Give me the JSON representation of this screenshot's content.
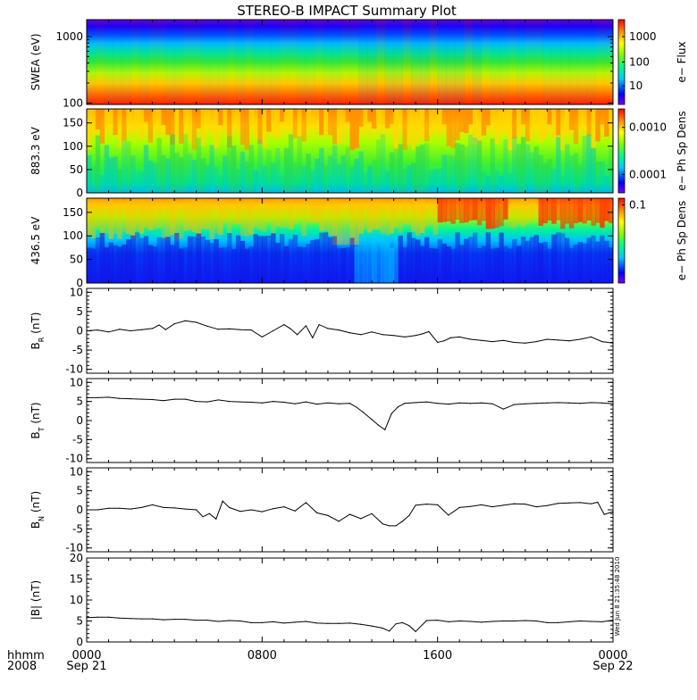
{
  "title": "STEREO-B IMPACT Summary Plot",
  "timestamp_stamp": "Wed Jun  8 21:35:48 2010",
  "x_axis": {
    "row1_label": "hhmm",
    "row2_label": "2008",
    "ticks": [
      {
        "time": "0000",
        "date": "Sep 21",
        "hour": 0
      },
      {
        "time": "0800",
        "date": "",
        "hour": 8
      },
      {
        "time": "1600",
        "date": "",
        "hour": 16
      },
      {
        "time": "0000",
        "date": "Sep 22",
        "hour": 24
      }
    ],
    "xlim_hours": [
      0,
      24
    ]
  },
  "chart_data": [
    {
      "type": "heatmap",
      "id": "swea",
      "ylabel": "SWEA (eV)",
      "yscale": "log",
      "ylim": [
        95,
        1800
      ],
      "yticks": [
        {
          "v": 100,
          "label": "100"
        },
        {
          "v": 1000,
          "label": "1000"
        }
      ],
      "colorbar_label": "e− Flux",
      "colorbar_scale": "log",
      "colorbar_ticks": [
        "10",
        "100",
        "1000"
      ],
      "notes": "Flux decreases with energy: red near 100 eV, green ~400 eV, blue/purple above ~1000 eV; slightly higher flux after ~12:30"
    },
    {
      "type": "heatmap",
      "id": "pad883",
      "ylabel": "883.3 eV",
      "ylim": [
        0,
        180
      ],
      "yticks": [
        {
          "v": 0,
          "label": "0"
        },
        {
          "v": 50,
          "label": "50"
        },
        {
          "v": 100,
          "label": "100"
        },
        {
          "v": 150,
          "label": "150"
        }
      ],
      "colorbar_label": "e− Ph Sp Dens",
      "colorbar_scale": "log",
      "colorbar_ticks": [
        "0.0001",
        "0.0010"
      ]
    },
    {
      "type": "heatmap",
      "id": "pad436",
      "ylabel": "436.5 eV",
      "ylim": [
        0,
        180
      ],
      "yticks": [
        {
          "v": 0,
          "label": "0"
        },
        {
          "v": 50,
          "label": "50"
        },
        {
          "v": 100,
          "label": "100"
        },
        {
          "v": 150,
          "label": "150"
        }
      ],
      "colorbar_label": "e− Ph Sp Dens",
      "colorbar_scale": "log",
      "colorbar_ticks": [
        "0.1"
      ]
    },
    {
      "type": "line",
      "id": "br",
      "ylabel_main": "B",
      "ylabel_sub": "R",
      "ylabel_unit": " (nT)",
      "ylim": [
        -11,
        11
      ],
      "yticks": [
        -10,
        -5,
        0,
        5,
        10
      ],
      "x_hours": [
        0,
        0.5,
        1,
        1.5,
        2,
        2.5,
        3,
        3.3,
        3.6,
        4,
        4.5,
        5,
        5.5,
        6,
        6.5,
        7,
        7.5,
        8,
        8.5,
        9,
        9.3,
        9.6,
        10,
        10.3,
        10.6,
        11,
        11.5,
        12,
        12.5,
        13,
        13.5,
        14,
        14.5,
        15,
        15.3,
        15.6,
        16,
        16.3,
        16.6,
        17,
        17.5,
        18,
        18.5,
        19,
        19.5,
        20,
        20.5,
        21,
        21.5,
        22,
        22.5,
        23,
        23.5,
        24
      ],
      "values": [
        0,
        0.2,
        -0.3,
        0.4,
        0,
        0.3,
        0.6,
        1.5,
        0.3,
        1.8,
        2.6,
        2.2,
        1.2,
        0.4,
        0.5,
        0.3,
        0.2,
        -1.6,
        0,
        1.6,
        0.5,
        -1,
        1.3,
        -1.8,
        1.6,
        0.6,
        0.2,
        -0.5,
        -1,
        -0.3,
        -1,
        -1.2,
        -1.6,
        -1.2,
        -0.8,
        -0.2,
        -3,
        -2.6,
        -1.8,
        -1.6,
        -2.2,
        -2.5,
        -2.8,
        -2.5,
        -3,
        -3.2,
        -2.8,
        -2.2,
        -2.4,
        -2.6,
        -2.2,
        -1.6,
        -2.8,
        -3.2
      ]
    },
    {
      "type": "line",
      "id": "bt",
      "ylabel_main": "B",
      "ylabel_sub": "T",
      "ylabel_unit": " (nT)",
      "ylim": [
        -11,
        11
      ],
      "yticks": [
        -10,
        -5,
        0,
        5,
        10
      ],
      "x_hours": [
        0,
        0.5,
        1,
        1.5,
        2,
        2.5,
        3,
        3.5,
        4,
        4.5,
        5,
        5.5,
        6,
        6.5,
        7,
        7.5,
        8,
        8.5,
        9,
        9.5,
        10,
        10.5,
        11,
        11.5,
        12,
        12.3,
        12.6,
        13,
        13.3,
        13.6,
        13.9,
        14.2,
        14.5,
        15,
        15.5,
        16,
        16.5,
        17,
        17.5,
        18,
        18.5,
        19,
        19.5,
        20,
        20.5,
        21,
        21.5,
        22,
        22.5,
        23,
        23.5,
        24
      ],
      "values": [
        6,
        6,
        6.1,
        5.8,
        5.7,
        5.6,
        5.5,
        5.2,
        5.6,
        5.6,
        5,
        4.9,
        5.4,
        5,
        4.9,
        4.8,
        4.6,
        5,
        4.8,
        4.4,
        4.9,
        4.3,
        4.6,
        4.4,
        4.5,
        3.5,
        2.2,
        0.3,
        -1.2,
        -2.4,
        1.8,
        3.6,
        4.5,
        4.7,
        4.9,
        4.5,
        4.3,
        4.6,
        4.5,
        4.6,
        4.4,
        3,
        4.2,
        4.4,
        4.5,
        4.6,
        4.7,
        4.6,
        4.5,
        4.7,
        4.6,
        4.4
      ]
    },
    {
      "type": "line",
      "id": "bn",
      "ylabel_main": "B",
      "ylabel_sub": "N",
      "ylabel_unit": " (nT)",
      "ylim": [
        -11,
        11
      ],
      "yticks": [
        -10,
        -5,
        0,
        5,
        10
      ],
      "x_hours": [
        0,
        0.5,
        1,
        1.5,
        2,
        2.5,
        3,
        3.5,
        4,
        4.5,
        5,
        5.3,
        5.6,
        5.9,
        6.2,
        6.5,
        7,
        7.5,
        8,
        8.5,
        9,
        9.5,
        10,
        10.5,
        11,
        11.5,
        12,
        12.5,
        13,
        13.5,
        13.8,
        14.1,
        14.4,
        14.7,
        15,
        15.5,
        16,
        16.5,
        17,
        17.5,
        18,
        18.5,
        19,
        19.5,
        20,
        20.5,
        21,
        21.5,
        22,
        22.5,
        23,
        23.3,
        23.6,
        24
      ],
      "values": [
        0,
        0,
        0.4,
        0.4,
        0.2,
        0.6,
        1.3,
        0.6,
        0.5,
        0.2,
        0,
        -1.8,
        -1,
        -2.4,
        2.3,
        0.6,
        -0.4,
        0,
        -0.5,
        0.3,
        0.8,
        -0.3,
        1.9,
        -0.8,
        -1.5,
        -3,
        -1.2,
        -2.3,
        -1,
        -3.7,
        -4.2,
        -4.2,
        -3,
        -1.5,
        1.2,
        1.5,
        1.3,
        -1.4,
        0.6,
        0.9,
        1.3,
        0.8,
        1.2,
        1.6,
        1.5,
        0.8,
        1.1,
        1.7,
        1.8,
        1.9,
        1.6,
        2,
        -1.2,
        -0.5
      ]
    },
    {
      "type": "line",
      "id": "bmag",
      "ylabel_main": "|B| (nT)",
      "ylim": [
        0,
        20
      ],
      "yticks": [
        0,
        5,
        10,
        15,
        20
      ],
      "x_hours": [
        0,
        0.5,
        1,
        1.5,
        2,
        2.5,
        3,
        3.5,
        4,
        4.5,
        5,
        5.5,
        6,
        6.5,
        7,
        7.5,
        8,
        8.5,
        9,
        9.5,
        10,
        10.5,
        11,
        11.5,
        12,
        12.5,
        13,
        13.5,
        13.8,
        14.1,
        14.4,
        14.7,
        15,
        15.5,
        16,
        16.5,
        17,
        17.5,
        18,
        18.5,
        19,
        19.5,
        20,
        20.5,
        21,
        21.5,
        22,
        22.5,
        23,
        23.5,
        24
      ],
      "values": [
        5.8,
        5.9,
        5.9,
        5.7,
        5.6,
        5.5,
        5.5,
        5.3,
        5.4,
        5.4,
        5.2,
        5.2,
        4.9,
        5.1,
        5,
        4.6,
        4.6,
        4.8,
        4.5,
        4.7,
        4.9,
        4.5,
        4.4,
        4.4,
        4.5,
        4.2,
        3.8,
        3.3,
        2.6,
        4.3,
        4.6,
        3.9,
        2.5,
        5.1,
        5.2,
        4.8,
        5,
        4.9,
        4.7,
        4.9,
        5,
        5,
        5.1,
        5,
        4.6,
        4.6,
        4.8,
        5,
        4.9,
        4.8,
        5.2
      ]
    }
  ]
}
